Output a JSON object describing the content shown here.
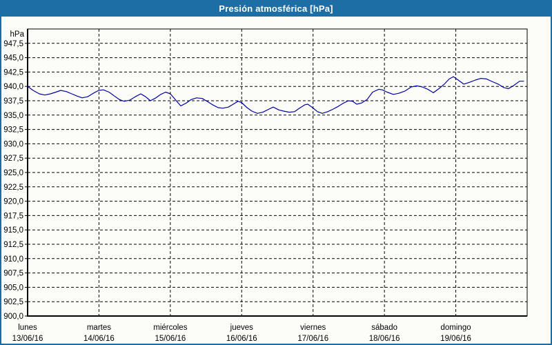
{
  "window": {
    "title": "Presión atmosférica [hPa]",
    "title_bar_color": "#1e6ea6",
    "border_color": "#1e6ca4",
    "background_color": "#fcfdf9"
  },
  "chart_data": {
    "type": "line",
    "title": "Presión atmosférica [hPa]",
    "ylabel": "hPa",
    "xlabel": "",
    "ylim": [
      900,
      950
    ],
    "ytick_step": 2.5,
    "grid": "dashed",
    "legend": "none",
    "line_color": "#0000a0",
    "grid_color": "#000000",
    "yticks": [
      {
        "value": 947.5,
        "label": "947,5"
      },
      {
        "value": 945.0,
        "label": "945,0"
      },
      {
        "value": 942.5,
        "label": "942,5"
      },
      {
        "value": 940.0,
        "label": "940,0"
      },
      {
        "value": 937.5,
        "label": "937,5"
      },
      {
        "value": 935.0,
        "label": "935,0"
      },
      {
        "value": 932.5,
        "label": "932,5"
      },
      {
        "value": 930.0,
        "label": "930,0"
      },
      {
        "value": 927.5,
        "label": "927,5"
      },
      {
        "value": 925.0,
        "label": "925,0"
      },
      {
        "value": 922.5,
        "label": "922,5"
      },
      {
        "value": 920.0,
        "label": "920,0"
      },
      {
        "value": 917.5,
        "label": "917,5"
      },
      {
        "value": 915.0,
        "label": "915,0"
      },
      {
        "value": 912.5,
        "label": "912,5"
      },
      {
        "value": 910.0,
        "label": "910,0"
      },
      {
        "value": 907.5,
        "label": "907,5"
      },
      {
        "value": 905.0,
        "label": "905,0"
      },
      {
        "value": 902.5,
        "label": "902,5"
      },
      {
        "value": 900.0,
        "label": "900,0"
      }
    ],
    "categories": [
      {
        "day": "lunes",
        "date": "13/06/16"
      },
      {
        "day": "martes",
        "date": "14/06/16"
      },
      {
        "day": "miércoles",
        "date": "15/06/16"
      },
      {
        "day": "jueves",
        "date": "16/06/16"
      },
      {
        "day": "viernes",
        "date": "17/06/16"
      },
      {
        "day": "sábado",
        "date": "18/06/16"
      },
      {
        "day": "domingo",
        "date": "19/06/16"
      }
    ],
    "series": [
      {
        "name": "presión atmosférica",
        "color": "#0000a0",
        "x_unit": "days since 13/06/16 00:00",
        "points": [
          [
            0.0,
            940.0
          ],
          [
            0.077,
            939.3
          ],
          [
            0.164,
            938.7
          ],
          [
            0.242,
            938.5
          ],
          [
            0.319,
            938.7
          ],
          [
            0.396,
            939.0
          ],
          [
            0.464,
            939.3
          ],
          [
            0.541,
            939.1
          ],
          [
            0.619,
            938.7
          ],
          [
            0.696,
            938.3
          ],
          [
            0.764,
            938.0
          ],
          [
            0.841,
            938.2
          ],
          [
            0.919,
            938.8
          ],
          [
            0.996,
            939.3
          ],
          [
            1.063,
            939.4
          ],
          [
            1.141,
            939.0
          ],
          [
            1.218,
            938.3
          ],
          [
            1.286,
            937.7
          ],
          [
            1.354,
            937.4
          ],
          [
            1.431,
            937.6
          ],
          [
            1.508,
            938.2
          ],
          [
            1.586,
            938.7
          ],
          [
            1.653,
            938.2
          ],
          [
            1.721,
            937.5
          ],
          [
            1.798,
            938.0
          ],
          [
            1.866,
            938.6
          ],
          [
            1.934,
            939.0
          ],
          [
            2.001,
            938.7
          ],
          [
            2.069,
            937.7
          ],
          [
            2.146,
            936.6
          ],
          [
            2.224,
            937.1
          ],
          [
            2.292,
            937.7
          ],
          [
            2.369,
            938.0
          ],
          [
            2.446,
            937.9
          ],
          [
            2.514,
            937.4
          ],
          [
            2.591,
            936.8
          ],
          [
            2.669,
            936.3
          ],
          [
            2.736,
            936.2
          ],
          [
            2.814,
            936.4
          ],
          [
            2.881,
            936.9
          ],
          [
            2.949,
            937.4
          ],
          [
            2.997,
            937.2
          ],
          [
            3.075,
            936.3
          ],
          [
            3.142,
            935.7
          ],
          [
            3.22,
            935.3
          ],
          [
            3.297,
            935.5
          ],
          [
            3.374,
            936.0
          ],
          [
            3.442,
            936.4
          ],
          [
            3.519,
            935.9
          ],
          [
            3.587,
            935.7
          ],
          [
            3.664,
            935.5
          ],
          [
            3.742,
            935.6
          ],
          [
            3.81,
            936.2
          ],
          [
            3.887,
            936.8
          ],
          [
            3.925,
            936.9
          ],
          [
            3.993,
            936.3
          ],
          [
            4.061,
            935.6
          ],
          [
            4.129,
            935.3
          ],
          [
            4.206,
            935.6
          ],
          [
            4.273,
            936.0
          ],
          [
            4.351,
            936.5
          ],
          [
            4.428,
            937.1
          ],
          [
            4.496,
            937.5
          ],
          [
            4.554,
            937.4
          ],
          [
            4.612,
            936.9
          ],
          [
            4.68,
            937.1
          ],
          [
            4.757,
            937.7
          ],
          [
            4.834,
            939.0
          ],
          [
            4.921,
            939.5
          ],
          [
            4.97,
            939.4
          ],
          [
            5.037,
            939.0
          ],
          [
            5.124,
            938.6
          ],
          [
            5.202,
            938.8
          ],
          [
            5.289,
            939.2
          ],
          [
            5.376,
            939.9
          ],
          [
            5.453,
            940.1
          ],
          [
            5.53,
            939.9
          ],
          [
            5.608,
            939.5
          ],
          [
            5.685,
            938.9
          ],
          [
            5.763,
            939.6
          ],
          [
            5.84,
            940.4
          ],
          [
            5.908,
            941.3
          ],
          [
            5.966,
            941.7
          ],
          [
            6.033,
            941.1
          ],
          [
            6.111,
            940.4
          ],
          [
            6.188,
            940.7
          ],
          [
            6.275,
            941.1
          ],
          [
            6.353,
            941.4
          ],
          [
            6.43,
            941.3
          ],
          [
            6.517,
            940.8
          ],
          [
            6.594,
            940.4
          ],
          [
            6.672,
            939.8
          ],
          [
            6.739,
            939.6
          ],
          [
            6.817,
            940.2
          ],
          [
            6.894,
            940.9
          ],
          [
            6.952,
            940.9
          ]
        ]
      }
    ]
  }
}
